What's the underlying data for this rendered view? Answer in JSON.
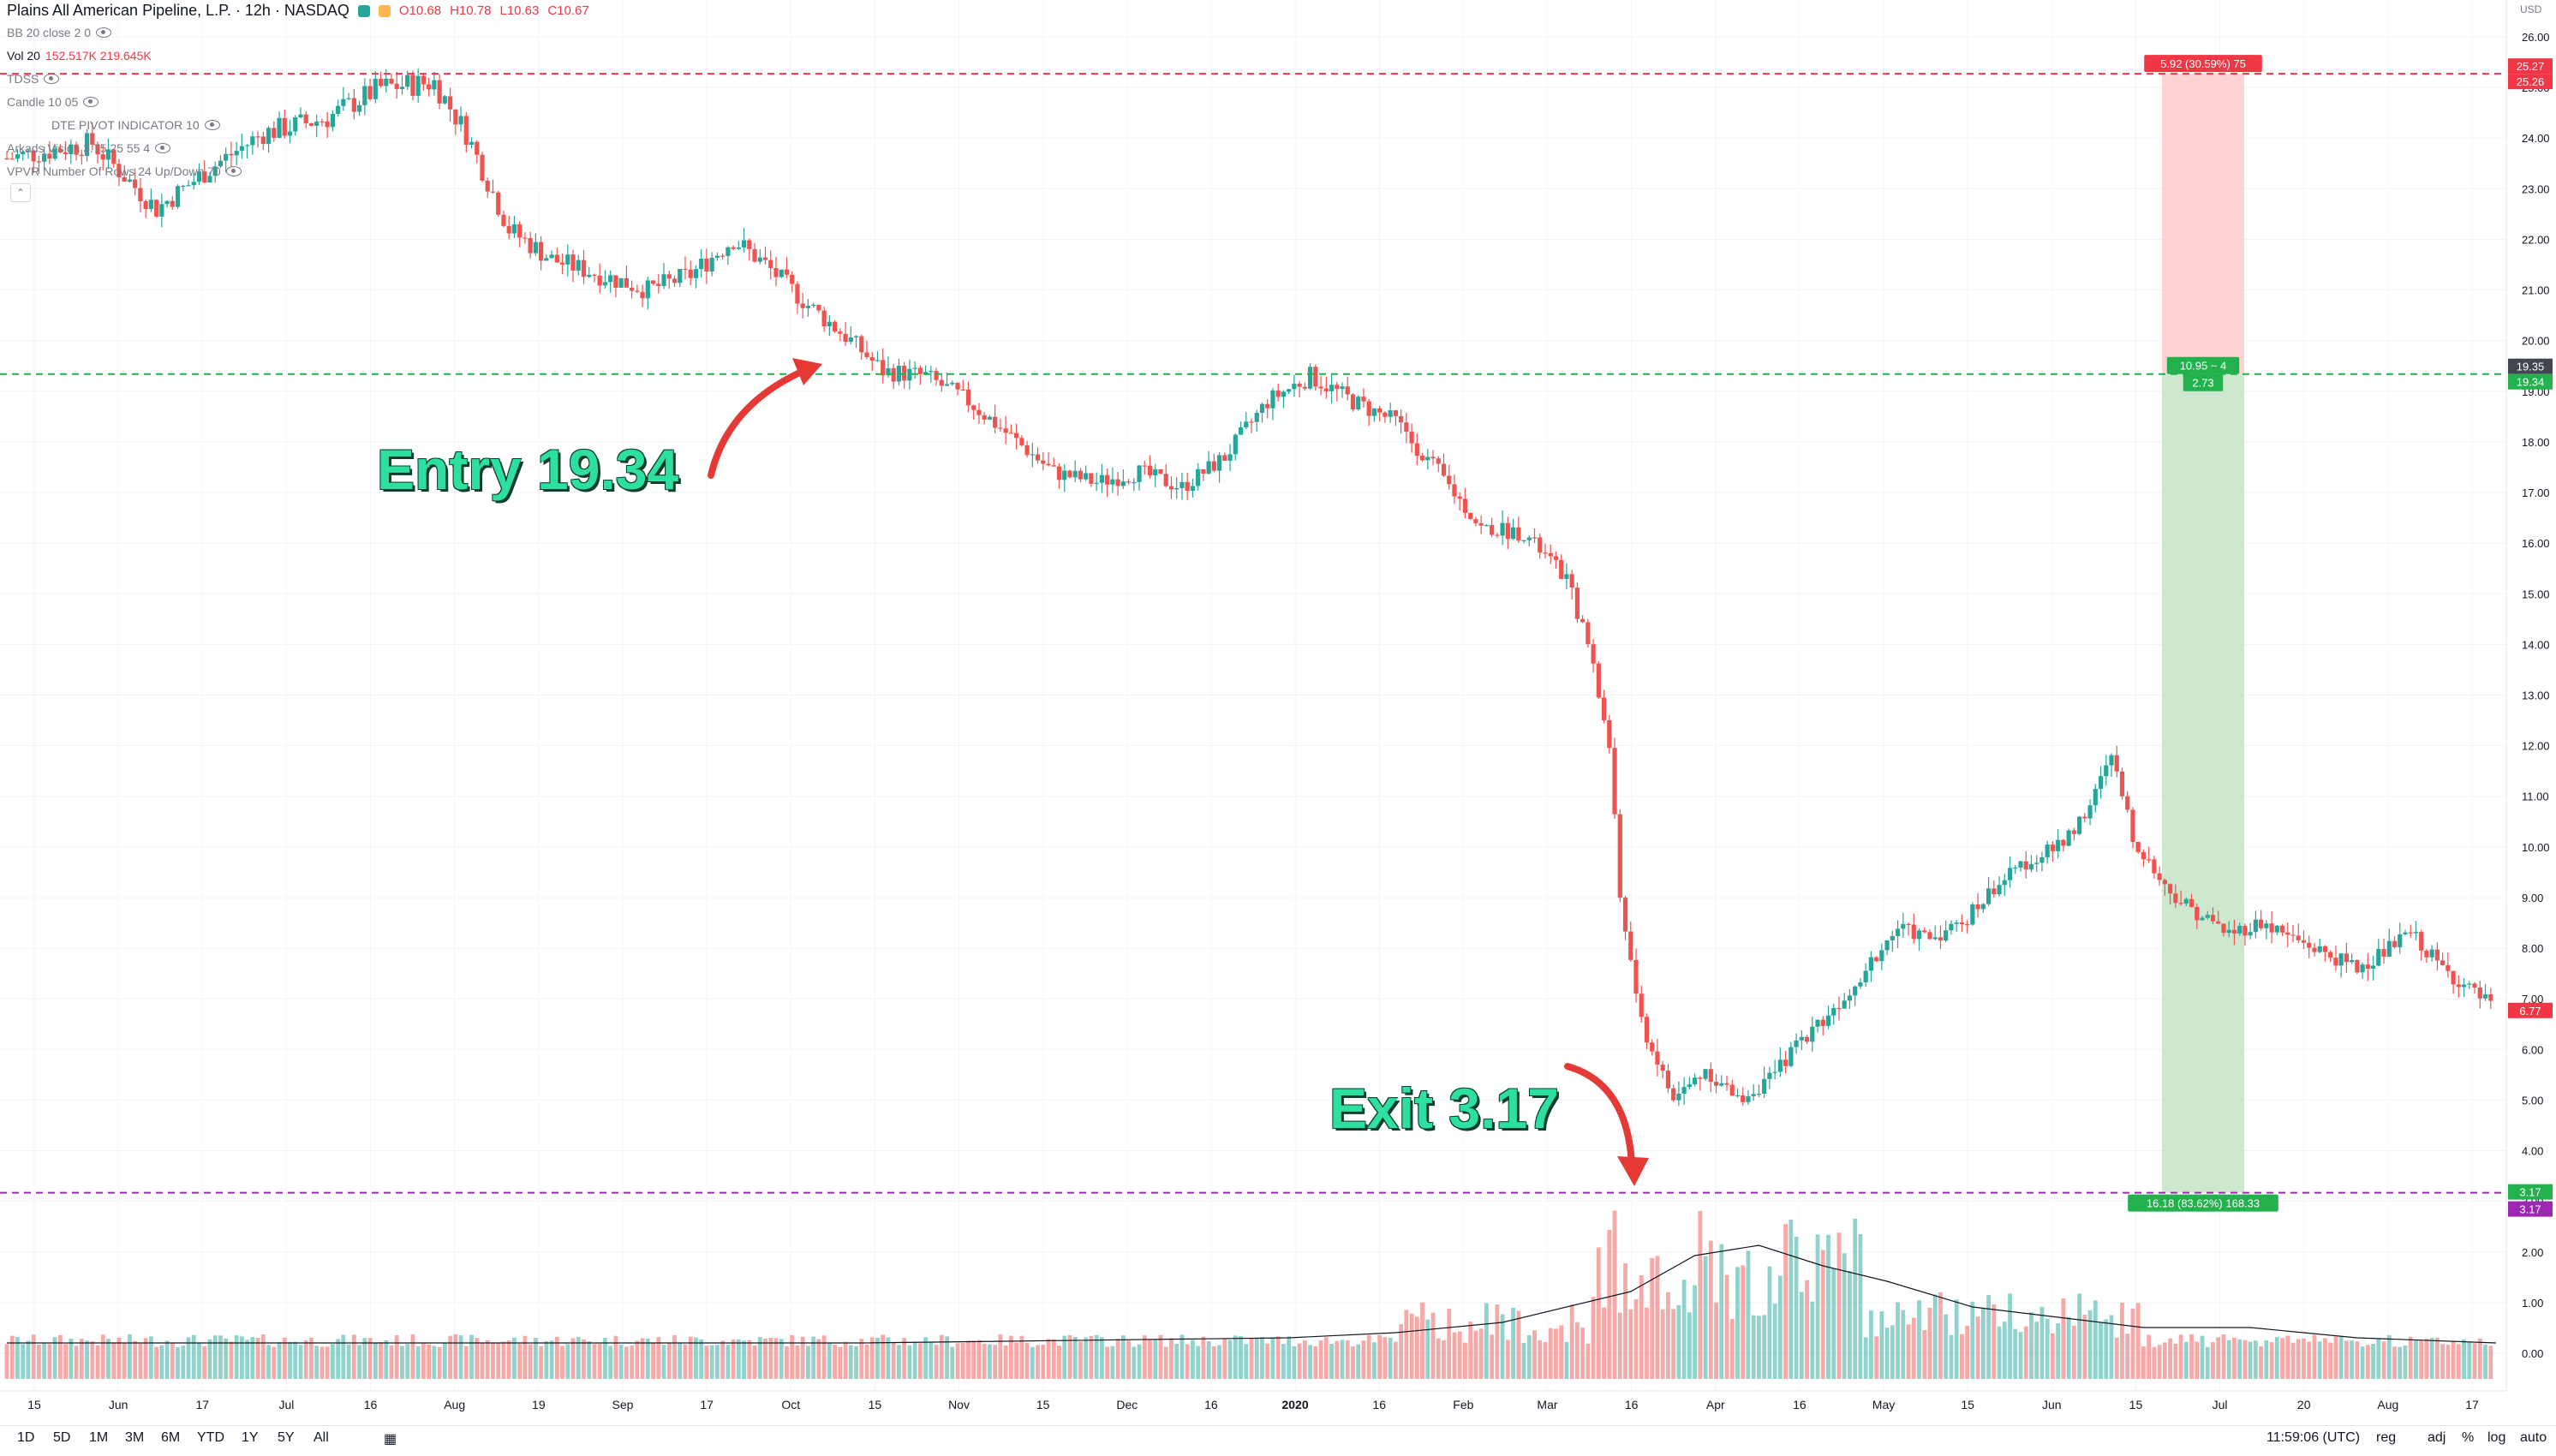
{
  "header": {
    "symbol": "Plains All American Pipeline, L.P. · 12h · NASDAQ",
    "open": "O10.68",
    "high": "H10.78",
    "low": "L10.63",
    "close": "C10.67"
  },
  "indicators": [
    {
      "label": "BB 20 close 2 0"
    },
    {
      "label": "Vol 20",
      "values": "152.517K  219.645K"
    },
    {
      "label": "TDSS"
    },
    {
      "label": "Candle 10 05"
    },
    {
      "label": "DTE PIVOT INDICATOR 10"
    },
    {
      "label": "Arkads Vision 3.75 25 55 4"
    },
    {
      "label": "VPVR Number Of Rows 24 Up/Down 70"
    }
  ],
  "currency": "USD",
  "annotations": {
    "entry": "Entry 19.34",
    "exit": "Exit 3.17"
  },
  "position": {
    "stop_label": "5.92 (30.59%) 75",
    "entry_label_1": "10.95 ~ 4",
    "entry_label_2": "2.73",
    "target_label": "16.18 (83.62%) 168.33"
  },
  "price_tags": {
    "stop_1": "25.27",
    "stop_2": "25.26",
    "entry_1": "19.35",
    "entry_2": "19.34",
    "last": "6.77",
    "exit_1": "3.17",
    "exit_2": "3.17"
  },
  "timeframes": [
    "1D",
    "5D",
    "1M",
    "3M",
    "6M",
    "YTD",
    "1Y",
    "5Y",
    "All"
  ],
  "status": {
    "time": "11:59:06 (UTC)",
    "session": "reg",
    "adj": "adj",
    "percent": "%",
    "log": "log",
    "auto": "auto"
  },
  "colors": {
    "up": "#26a69a",
    "down": "#ef5350",
    "entry_line": "#22b14c",
    "stop_line": "#f23645",
    "exit_line": "#9c27b0",
    "stop_zone": "#ffcdd2",
    "target_zone": "#c8e6c9",
    "annotation_text": "#2de0a0",
    "arrow": "#e53935"
  },
  "chart_data": {
    "type": "candlestick",
    "y_axis_ticks": [
      "26.00",
      "25.00",
      "24.00",
      "23.00",
      "22.00",
      "21.00",
      "20.00",
      "19.00",
      "18.00",
      "17.00",
      "16.00",
      "15.00",
      "14.00",
      "13.00",
      "12.00",
      "11.00",
      "10.00",
      "9.00",
      "8.00",
      "7.00",
      "6.00",
      "5.00",
      "4.00",
      "3.00",
      "2.00",
      "1.00",
      "0.00"
    ],
    "ylim": [
      -0.6,
      26.5
    ],
    "x_axis_labels": [
      "15",
      "Jun",
      "17",
      "Jul",
      "16",
      "Aug",
      "19",
      "Sep",
      "17",
      "Oct",
      "15",
      "Nov",
      "15",
      "Dec",
      "16",
      "2020",
      "16",
      "Feb",
      "Mar",
      "16",
      "Apr",
      "16",
      "May",
      "15",
      "Jun",
      "15",
      "Jul",
      "20",
      "Aug",
      "17"
    ],
    "price_path": [
      [
        0,
        23.6
      ],
      [
        40,
        23.9
      ],
      [
        70,
        22.6
      ],
      [
        95,
        23.4
      ],
      [
        120,
        24.1
      ],
      [
        150,
        24.4
      ],
      [
        175,
        25.0
      ],
      [
        200,
        25.1
      ],
      [
        215,
        24.1
      ],
      [
        235,
        22.2
      ],
      [
        255,
        21.6
      ],
      [
        270,
        21.4
      ],
      [
        285,
        21.2
      ],
      [
        300,
        21.0
      ],
      [
        320,
        21.3
      ],
      [
        340,
        22.0
      ],
      [
        355,
        21.5
      ],
      [
        375,
        20.7
      ],
      [
        395,
        20.0
      ],
      [
        410,
        19.4
      ],
      [
        430,
        19.3
      ],
      [
        450,
        18.8
      ],
      [
        470,
        18.1
      ],
      [
        490,
        17.4
      ],
      [
        510,
        17.2
      ],
      [
        530,
        17.4
      ],
      [
        550,
        17.1
      ],
      [
        570,
        17.7
      ],
      [
        590,
        18.8
      ],
      [
        610,
        19.3
      ],
      [
        630,
        18.8
      ],
      [
        650,
        18.4
      ],
      [
        670,
        17.4
      ],
      [
        690,
        16.3
      ],
      [
        710,
        16.2
      ],
      [
        730,
        15.3
      ],
      [
        740,
        14.0
      ],
      [
        750,
        12.0
      ],
      [
        755,
        9.0
      ],
      [
        765,
        6.5
      ],
      [
        780,
        5.0
      ],
      [
        795,
        5.6
      ],
      [
        810,
        5.0
      ],
      [
        825,
        5.4
      ],
      [
        840,
        6.2
      ],
      [
        855,
        6.8
      ],
      [
        870,
        7.6
      ],
      [
        885,
        8.4
      ],
      [
        900,
        8.2
      ],
      [
        915,
        8.5
      ],
      [
        930,
        9.2
      ],
      [
        945,
        9.7
      ],
      [
        960,
        10.0
      ],
      [
        975,
        10.8
      ],
      [
        985,
        11.8
      ],
      [
        995,
        10.2
      ],
      [
        1010,
        9.2
      ],
      [
        1025,
        8.7
      ],
      [
        1040,
        8.3
      ],
      [
        1055,
        8.5
      ],
      [
        1070,
        8.2
      ],
      [
        1085,
        7.9
      ],
      [
        1100,
        7.6
      ],
      [
        1115,
        8.0
      ],
      [
        1125,
        8.3
      ],
      [
        1140,
        7.6
      ],
      [
        1155,
        7.1
      ],
      [
        1165,
        6.8
      ]
    ],
    "volume_ma_path": [
      [
        0,
        0.2
      ],
      [
        200,
        0.2
      ],
      [
        400,
        0.2
      ],
      [
        600,
        0.3
      ],
      [
        650,
        0.4
      ],
      [
        700,
        0.6
      ],
      [
        760,
        1.2
      ],
      [
        790,
        1.9
      ],
      [
        820,
        2.1
      ],
      [
        850,
        1.7
      ],
      [
        880,
        1.4
      ],
      [
        920,
        0.9
      ],
      [
        960,
        0.7
      ],
      [
        1000,
        0.5
      ],
      [
        1050,
        0.5
      ],
      [
        1100,
        0.3
      ],
      [
        1165,
        0.2
      ]
    ],
    "levels": {
      "stop": 25.27,
      "entry": 19.34,
      "exit": 3.17
    }
  }
}
